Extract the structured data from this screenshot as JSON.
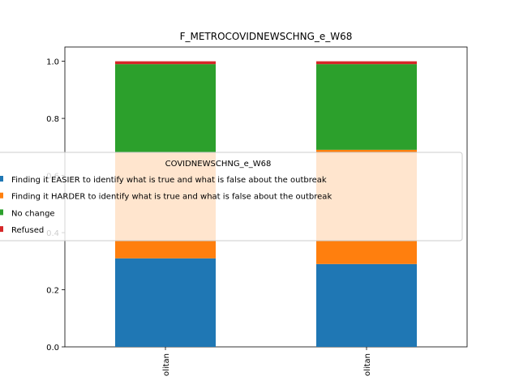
{
  "chart_data": {
    "type": "bar",
    "stacked": true,
    "title": "F_METROCOVIDNEWSCHNG_e_W68",
    "xlabel": "",
    "ylabel": "",
    "categories": [
      "olitan",
      "olitan"
    ],
    "ylim": [
      0,
      1.05
    ],
    "yticks": [
      "0.0",
      "0.2",
      "0.4",
      "0.6",
      "0.8",
      "1.0"
    ],
    "legend": {
      "title": "COVIDNEWSCHNG_e_W68",
      "placement": "center-left"
    },
    "series": [
      {
        "name": "Finding it EASIER to identify what is true and what is false about the outbreak",
        "color": "#1f77b4",
        "values": [
          0.31,
          0.29
        ]
      },
      {
        "name": "Finding it HARDER to identify what is true and what is false about the outbreak",
        "color": "#ff7f0e",
        "values": [
          0.37,
          0.4
        ]
      },
      {
        "name": "No change",
        "color": "#2ca02c",
        "values": [
          0.31,
          0.3
        ]
      },
      {
        "name": "Refused",
        "color": "#d62728",
        "values": [
          0.01,
          0.01
        ]
      }
    ]
  }
}
